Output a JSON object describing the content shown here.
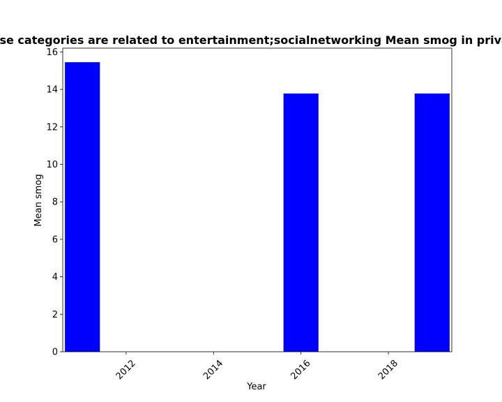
{
  "chart_data": {
    "type": "bar",
    "title": "Apps whose categories are related to entertainment;socialnetworking Mean smog in privacy policies",
    "xlabel": "Year",
    "ylabel": "Mean smog",
    "x": [
      2011,
      2016,
      2019
    ],
    "values": [
      15.45,
      13.78,
      13.78
    ],
    "bar_width_years": 0.8,
    "xlim": [
      2010.55,
      2019.45
    ],
    "ylim": [
      0,
      16.2
    ],
    "xticks": [
      2012,
      2014,
      2016,
      2018
    ],
    "yticks": [
      0,
      2,
      4,
      6,
      8,
      10,
      12,
      14,
      16
    ],
    "xtick_rotation_deg": 45,
    "grid": false,
    "legend": "none",
    "bar_color": "#0000ff"
  }
}
